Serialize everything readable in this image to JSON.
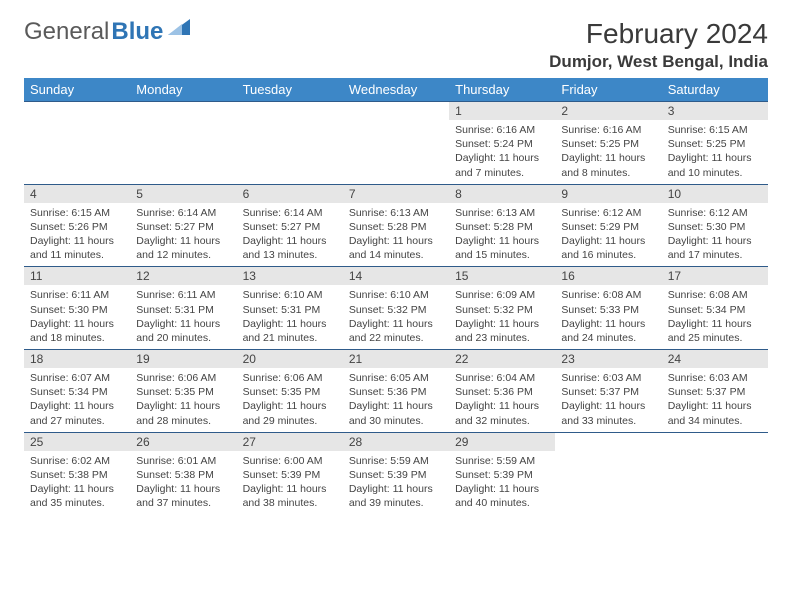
{
  "brand": {
    "part1": "General",
    "part2": "Blue"
  },
  "title": "February 2024",
  "location": "Dumjor, West Bengal, India",
  "colors": {
    "headerBar": "#3d87c7",
    "rowDivider": "#2f5b8a",
    "dayNumBg": "#e6e6e6",
    "brandBlue": "#2f75b5"
  },
  "columns": [
    "Sunday",
    "Monday",
    "Tuesday",
    "Wednesday",
    "Thursday",
    "Friday",
    "Saturday"
  ],
  "firstWeekday": 4,
  "daysInMonth": 29,
  "days": {
    "1": {
      "sunrise": "6:16 AM",
      "sunset": "5:24 PM",
      "daylight": "11 hours and 7 minutes."
    },
    "2": {
      "sunrise": "6:16 AM",
      "sunset": "5:25 PM",
      "daylight": "11 hours and 8 minutes."
    },
    "3": {
      "sunrise": "6:15 AM",
      "sunset": "5:25 PM",
      "daylight": "11 hours and 10 minutes."
    },
    "4": {
      "sunrise": "6:15 AM",
      "sunset": "5:26 PM",
      "daylight": "11 hours and 11 minutes."
    },
    "5": {
      "sunrise": "6:14 AM",
      "sunset": "5:27 PM",
      "daylight": "11 hours and 12 minutes."
    },
    "6": {
      "sunrise": "6:14 AM",
      "sunset": "5:27 PM",
      "daylight": "11 hours and 13 minutes."
    },
    "7": {
      "sunrise": "6:13 AM",
      "sunset": "5:28 PM",
      "daylight": "11 hours and 14 minutes."
    },
    "8": {
      "sunrise": "6:13 AM",
      "sunset": "5:28 PM",
      "daylight": "11 hours and 15 minutes."
    },
    "9": {
      "sunrise": "6:12 AM",
      "sunset": "5:29 PM",
      "daylight": "11 hours and 16 minutes."
    },
    "10": {
      "sunrise": "6:12 AM",
      "sunset": "5:30 PM",
      "daylight": "11 hours and 17 minutes."
    },
    "11": {
      "sunrise": "6:11 AM",
      "sunset": "5:30 PM",
      "daylight": "11 hours and 18 minutes."
    },
    "12": {
      "sunrise": "6:11 AM",
      "sunset": "5:31 PM",
      "daylight": "11 hours and 20 minutes."
    },
    "13": {
      "sunrise": "6:10 AM",
      "sunset": "5:31 PM",
      "daylight": "11 hours and 21 minutes."
    },
    "14": {
      "sunrise": "6:10 AM",
      "sunset": "5:32 PM",
      "daylight": "11 hours and 22 minutes."
    },
    "15": {
      "sunrise": "6:09 AM",
      "sunset": "5:32 PM",
      "daylight": "11 hours and 23 minutes."
    },
    "16": {
      "sunrise": "6:08 AM",
      "sunset": "5:33 PM",
      "daylight": "11 hours and 24 minutes."
    },
    "17": {
      "sunrise": "6:08 AM",
      "sunset": "5:34 PM",
      "daylight": "11 hours and 25 minutes."
    },
    "18": {
      "sunrise": "6:07 AM",
      "sunset": "5:34 PM",
      "daylight": "11 hours and 27 minutes."
    },
    "19": {
      "sunrise": "6:06 AM",
      "sunset": "5:35 PM",
      "daylight": "11 hours and 28 minutes."
    },
    "20": {
      "sunrise": "6:06 AM",
      "sunset": "5:35 PM",
      "daylight": "11 hours and 29 minutes."
    },
    "21": {
      "sunrise": "6:05 AM",
      "sunset": "5:36 PM",
      "daylight": "11 hours and 30 minutes."
    },
    "22": {
      "sunrise": "6:04 AM",
      "sunset": "5:36 PM",
      "daylight": "11 hours and 32 minutes."
    },
    "23": {
      "sunrise": "6:03 AM",
      "sunset": "5:37 PM",
      "daylight": "11 hours and 33 minutes."
    },
    "24": {
      "sunrise": "6:03 AM",
      "sunset": "5:37 PM",
      "daylight": "11 hours and 34 minutes."
    },
    "25": {
      "sunrise": "6:02 AM",
      "sunset": "5:38 PM",
      "daylight": "11 hours and 35 minutes."
    },
    "26": {
      "sunrise": "6:01 AM",
      "sunset": "5:38 PM",
      "daylight": "11 hours and 37 minutes."
    },
    "27": {
      "sunrise": "6:00 AM",
      "sunset": "5:39 PM",
      "daylight": "11 hours and 38 minutes."
    },
    "28": {
      "sunrise": "5:59 AM",
      "sunset": "5:39 PM",
      "daylight": "11 hours and 39 minutes."
    },
    "29": {
      "sunrise": "5:59 AM",
      "sunset": "5:39 PM",
      "daylight": "11 hours and 40 minutes."
    }
  },
  "labels": {
    "sunrise": "Sunrise: ",
    "sunset": "Sunset: ",
    "daylight": "Daylight: "
  }
}
